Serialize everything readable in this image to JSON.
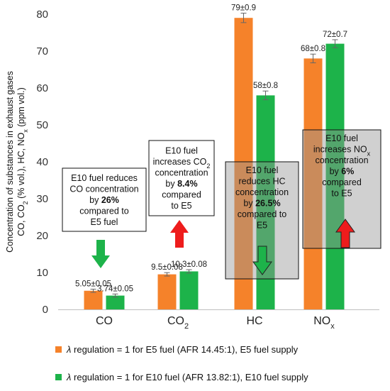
{
  "chart_data": {
    "type": "bar",
    "categories": [
      "CO",
      "CO2",
      "HC",
      "NOx"
    ],
    "ylabel": "Concentration of substances in exhaust gases CO, CO2 (% vol.), HC, NOx (ppm vol.)",
    "ylabel_line1": "Concentration of substances in exhaust gases",
    "ylabel_line2": "CO, CO2 (% vol.), HC, NOx (ppm vol.)",
    "ylim": [
      0,
      80
    ],
    "yticks": [
      0,
      10,
      20,
      30,
      40,
      50,
      60,
      70,
      80
    ],
    "grid": false,
    "legend_position": "bottom",
    "series": [
      {
        "name": "λ regulation = 1 for E5 fuel (AFR 14.45:1), E5 fuel supply",
        "color": "#f5822a",
        "values": [
          5.05,
          9.5,
          79,
          68
        ],
        "errors": [
          0.05,
          0.08,
          0.9,
          0.8
        ],
        "labels": [
          "5.05±0.05",
          "9.5±0.08",
          "79±0.9",
          "68±0.8"
        ]
      },
      {
        "name": "λ regulation = 1 for E10 fuel (AFR 13.82:1), E10 fuel supply",
        "color": "#1db34a",
        "values": [
          3.74,
          10.3,
          58,
          72
        ],
        "errors": [
          0.05,
          0.08,
          0.8,
          0.7
        ],
        "labels": [
          "3.74±0.05",
          "10.3±0.08",
          "58±0.8",
          "72±0.7"
        ]
      }
    ],
    "annotations": [
      {
        "lines": [
          "E10 fuel reduces",
          "CO concentration",
          "by 26%",
          "compared to",
          "E5 fuel"
        ],
        "arrow": "down",
        "arrow_color": "#1db34a"
      },
      {
        "lines": [
          "E10 fuel",
          "increases CO2",
          "concentration",
          "by 8.4%",
          "compared",
          "to E5"
        ],
        "arrow": "up",
        "arrow_color": "#ee1c1c"
      },
      {
        "lines": [
          "E10 fuel",
          "reduces HC",
          "concentration",
          "by 26.5%",
          "compared to",
          "E5"
        ],
        "arrow": "down",
        "arrow_color": "#1db34a"
      },
      {
        "lines": [
          "E10 fuel",
          "increases NOx",
          "concentration",
          "by 6%",
          "compared",
          "to E5"
        ],
        "arrow": "up",
        "arrow_color": "#ee1c1c"
      }
    ]
  }
}
